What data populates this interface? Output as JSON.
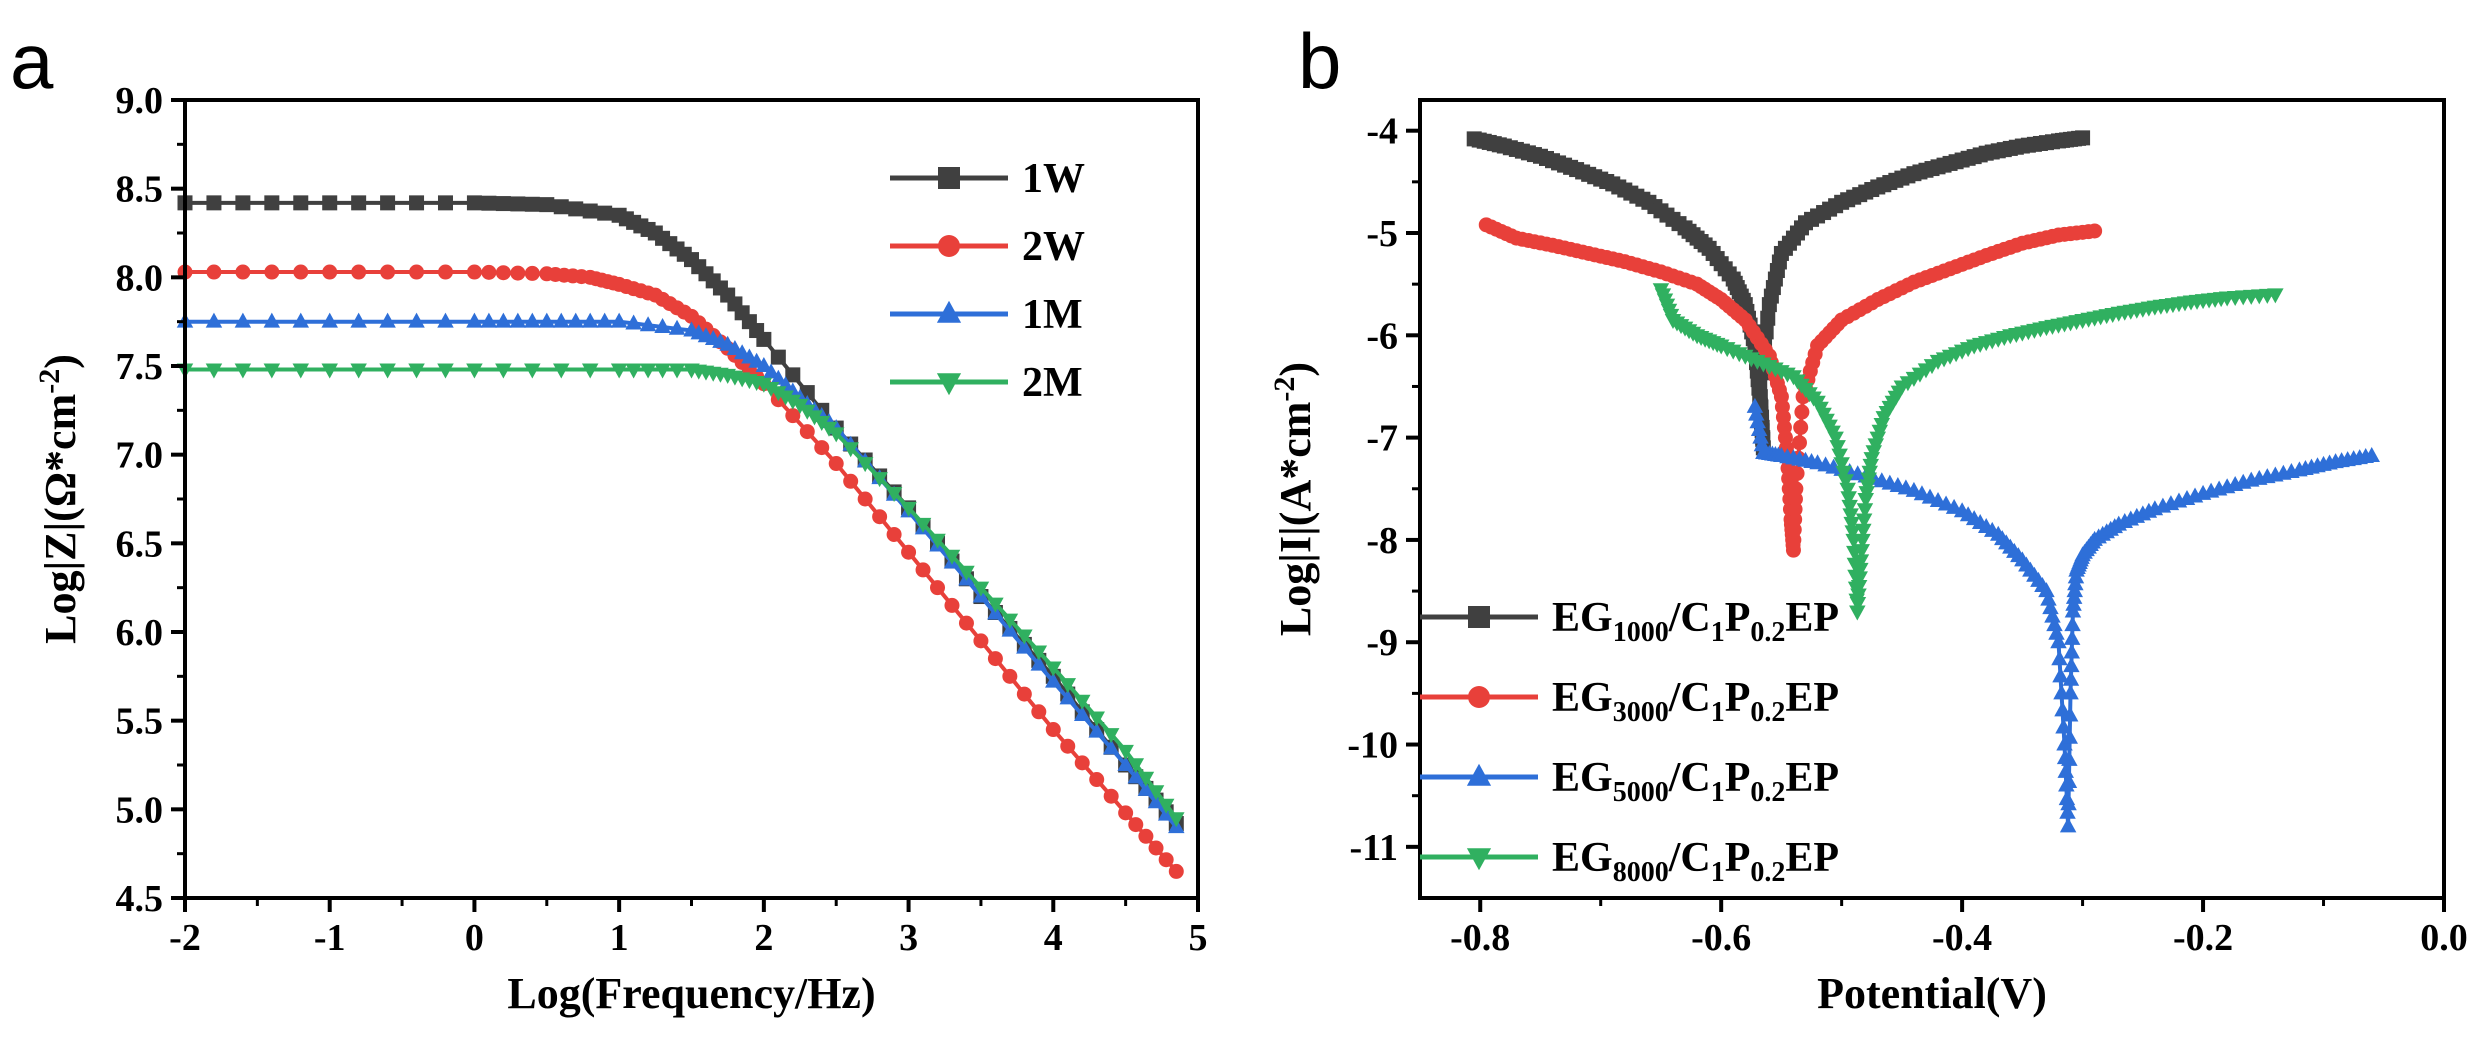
{
  "chart_data": [
    {
      "panel": "a",
      "type": "line",
      "xlabel": "Log(Frequency/Hz)",
      "ylabel": "Log|Z|(Ω*cm",
      "ylabel_sup": "-2",
      "ylabel_end": ")",
      "xlim": [
        -2,
        5
      ],
      "ylim": [
        4.5,
        9.0
      ],
      "x_ticks": [
        -2,
        -1,
        0,
        1,
        2,
        3,
        4,
        5
      ],
      "x_tick_labels": [
        "-2",
        "-1",
        "0",
        "1",
        "2",
        "3",
        "4",
        "5"
      ],
      "y_ticks": [
        4.5,
        5.0,
        5.5,
        6.0,
        6.5,
        7.0,
        7.5,
        8.0,
        8.5,
        9.0
      ],
      "y_tick_labels": [
        "4.5",
        "5.0",
        "5.5",
        "6.0",
        "6.5",
        "7.0",
        "7.5",
        "8.0",
        "8.5",
        "9.0"
      ],
      "legend_position": "top-right",
      "series": [
        {
          "name": "1W",
          "color": "#404040",
          "marker": "square",
          "x": [
            -2,
            -1,
            0,
            0.5,
            1,
            1.25,
            1.5,
            1.75,
            2,
            2.5,
            3,
            3.5,
            4,
            4.5,
            4.85
          ],
          "y": [
            8.42,
            8.42,
            8.42,
            8.41,
            8.35,
            8.25,
            8.1,
            7.9,
            7.65,
            7.15,
            6.7,
            6.2,
            5.75,
            5.25,
            4.92
          ]
        },
        {
          "name": "2W",
          "color": "#e8403a",
          "marker": "circle",
          "x": [
            -2,
            -1,
            0,
            0.5,
            0.8,
            1,
            1.25,
            1.5,
            1.75,
            2,
            2.5,
            3,
            3.5,
            4,
            4.5,
            4.85
          ],
          "y": [
            8.03,
            8.03,
            8.03,
            8.02,
            8.0,
            7.96,
            7.9,
            7.78,
            7.6,
            7.4,
            6.95,
            6.45,
            5.95,
            5.45,
            4.98,
            4.65
          ]
        },
        {
          "name": "1M",
          "color": "#2e6fd8",
          "marker": "triangle-up",
          "x": [
            -2,
            -1,
            0,
            0.5,
            1,
            1.5,
            1.75,
            2,
            2.25,
            2.5,
            3,
            3.5,
            4,
            4.5,
            4.85
          ],
          "y": [
            7.75,
            7.75,
            7.75,
            7.75,
            7.75,
            7.7,
            7.62,
            7.5,
            7.32,
            7.15,
            6.68,
            6.2,
            5.72,
            5.25,
            4.9
          ]
        },
        {
          "name": "2M",
          "color": "#30b060",
          "marker": "triangle-down",
          "x": [
            -2,
            -1,
            0,
            1,
            1.5,
            1.75,
            2,
            2.25,
            2.5,
            3,
            3.5,
            4,
            4.5,
            4.85
          ],
          "y": [
            7.48,
            7.48,
            7.48,
            7.48,
            7.48,
            7.45,
            7.4,
            7.28,
            7.12,
            6.7,
            6.25,
            5.8,
            5.33,
            4.95
          ]
        }
      ]
    },
    {
      "panel": "b",
      "type": "line",
      "xlabel": "Potential(V)",
      "ylabel": "Log|I|(A*cm",
      "ylabel_sup": "-2",
      "ylabel_end": ")",
      "xlim": [
        -0.85,
        0.0
      ],
      "ylim": [
        -11.5,
        -3.7
      ],
      "x_ticks": [
        -0.8,
        -0.6,
        -0.4,
        -0.2,
        0.0
      ],
      "x_tick_labels": [
        "-0.8",
        "-0.6",
        "-0.4",
        "-0.2",
        "0.0"
      ],
      "y_ticks": [
        -11,
        -10,
        -9,
        -8,
        -7,
        -6,
        -5,
        -4
      ],
      "y_tick_labels": [
        "-11",
        "-10",
        "-9",
        "-8",
        "-7",
        "-6",
        "-5",
        "-4"
      ],
      "legend_position": "bottom-left",
      "series": [
        {
          "name": "EG1000/C1P0.2EP",
          "label_parts": [
            "EG",
            "1000",
            "/C",
            "1",
            "P",
            "0.2",
            "EP"
          ],
          "color": "#404040",
          "marker": "square",
          "x": [
            -0.805,
            -0.78,
            -0.75,
            -0.72,
            -0.69,
            -0.66,
            -0.63,
            -0.61,
            -0.59,
            -0.58,
            -0.572,
            -0.568,
            -0.565,
            -0.568,
            -0.56,
            -0.55,
            -0.53,
            -0.5,
            -0.47,
            -0.44,
            -0.41,
            -0.38,
            -0.35,
            -0.32,
            -0.3
          ],
          "y": [
            -4.08,
            -4.15,
            -4.25,
            -4.38,
            -4.52,
            -4.7,
            -4.95,
            -5.15,
            -5.45,
            -5.7,
            -6.1,
            -6.6,
            -7.1,
            -6.5,
            -5.7,
            -5.2,
            -4.9,
            -4.7,
            -4.55,
            -4.42,
            -4.32,
            -4.22,
            -4.15,
            -4.1,
            -4.07
          ]
        },
        {
          "name": "EG3000/C1P0.2EP",
          "label_parts": [
            "EG",
            "3000",
            "/C",
            "1",
            "P",
            "0.2",
            "EP"
          ],
          "color": "#e8403a",
          "marker": "circle",
          "x": [
            -0.795,
            -0.77,
            -0.74,
            -0.71,
            -0.68,
            -0.65,
            -0.62,
            -0.6,
            -0.58,
            -0.56,
            -0.55,
            -0.545,
            -0.542,
            -0.54,
            -0.538,
            -0.532,
            -0.52,
            -0.5,
            -0.47,
            -0.44,
            -0.41,
            -0.38,
            -0.35,
            -0.32,
            -0.29
          ],
          "y": [
            -4.92,
            -5.05,
            -5.12,
            -5.2,
            -5.28,
            -5.38,
            -5.5,
            -5.65,
            -5.85,
            -6.2,
            -6.6,
            -7.2,
            -7.8,
            -8.1,
            -7.5,
            -6.6,
            -6.1,
            -5.85,
            -5.65,
            -5.48,
            -5.35,
            -5.22,
            -5.1,
            -5.02,
            -4.98
          ]
        },
        {
          "name": "EG5000/C1P0.2EP",
          "label_parts": [
            "EG",
            "5000",
            "/C",
            "1",
            "P",
            "0.2",
            "EP"
          ],
          "color": "#2e6fd8",
          "marker": "triangle-up",
          "x": [
            -0.572,
            -0.565,
            -0.55,
            -0.52,
            -0.48,
            -0.44,
            -0.4,
            -0.37,
            -0.35,
            -0.33,
            -0.32,
            -0.315,
            -0.312,
            -0.31,
            -0.308,
            -0.305,
            -0.3,
            -0.29,
            -0.27,
            -0.24,
            -0.2,
            -0.16,
            -0.12,
            -0.09,
            -0.06
          ],
          "y": [
            -6.7,
            -7.15,
            -7.18,
            -7.25,
            -7.38,
            -7.52,
            -7.72,
            -7.95,
            -8.2,
            -8.5,
            -9.0,
            -10.0,
            -10.8,
            -9.5,
            -8.7,
            -8.3,
            -8.15,
            -8.0,
            -7.85,
            -7.7,
            -7.55,
            -7.42,
            -7.32,
            -7.24,
            -7.18
          ]
        },
        {
          "name": "EG8000/C1P0.2EP",
          "label_parts": [
            "EG",
            "8000",
            "/C",
            "1",
            "P",
            "0.2",
            "EP"
          ],
          "color": "#30b060",
          "marker": "triangle-down",
          "x": [
            -0.65,
            -0.64,
            -0.62,
            -0.6,
            -0.57,
            -0.54,
            -0.52,
            -0.505,
            -0.495,
            -0.49,
            -0.487,
            -0.484,
            -0.48,
            -0.475,
            -0.465,
            -0.45,
            -0.42,
            -0.39,
            -0.36,
            -0.33,
            -0.3,
            -0.27,
            -0.24,
            -0.21,
            -0.18,
            -0.14
          ],
          "y": [
            -5.55,
            -5.85,
            -6.0,
            -6.1,
            -6.25,
            -6.4,
            -6.65,
            -7.0,
            -7.5,
            -8.0,
            -8.7,
            -8.2,
            -7.6,
            -7.2,
            -6.8,
            -6.5,
            -6.25,
            -6.1,
            -6.0,
            -5.92,
            -5.85,
            -5.78,
            -5.72,
            -5.67,
            -5.63,
            -5.6
          ]
        }
      ]
    }
  ]
}
